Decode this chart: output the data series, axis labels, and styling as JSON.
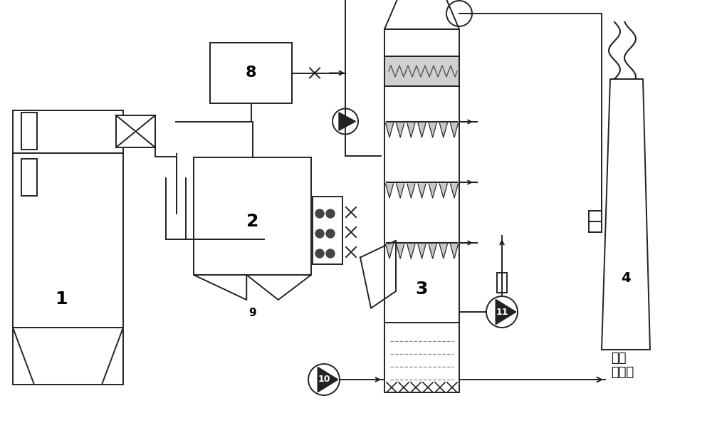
{
  "bg_color": "#ffffff",
  "lc": "#222222",
  "lw": 1.4,
  "fig_width": 10.0,
  "fig_height": 6.01,
  "dpi": 100,
  "label_1": "1",
  "label_2": "2",
  "label_3": "3",
  "label_4": "4",
  "label_8": "8",
  "label_9": "9",
  "label_10": "10",
  "label_11": "11",
  "text_drain": "排入\n污水池"
}
